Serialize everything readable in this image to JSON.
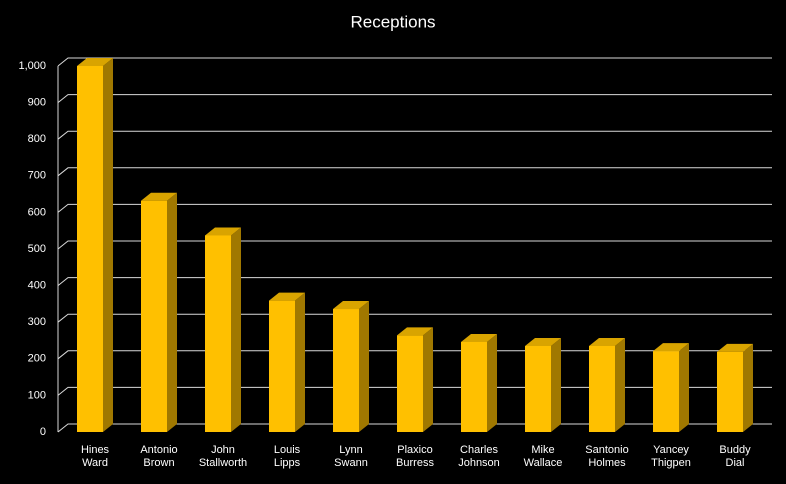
{
  "chart_data": {
    "type": "bar",
    "title": "Receptions",
    "categories": [
      "Hines Ward",
      "Antonio Brown",
      "John Stallworth",
      "Louis Lipps",
      "Lynn Swann",
      "Plaxico Burress",
      "Charles Johnson",
      "Mike Wallace",
      "Santonio Holmes",
      "Yancey Thigpen",
      "Buddy Dial"
    ],
    "values": [
      1000,
      632,
      537,
      359,
      336,
      264,
      246,
      235,
      235,
      221,
      219
    ],
    "color": "#ffc000",
    "ylim": [
      0,
      1000
    ],
    "yticks": [
      0,
      100,
      200,
      300,
      400,
      500,
      600,
      700,
      800,
      900,
      {
        "value": 1000,
        "label": "1,000"
      }
    ],
    "grid": true
  }
}
